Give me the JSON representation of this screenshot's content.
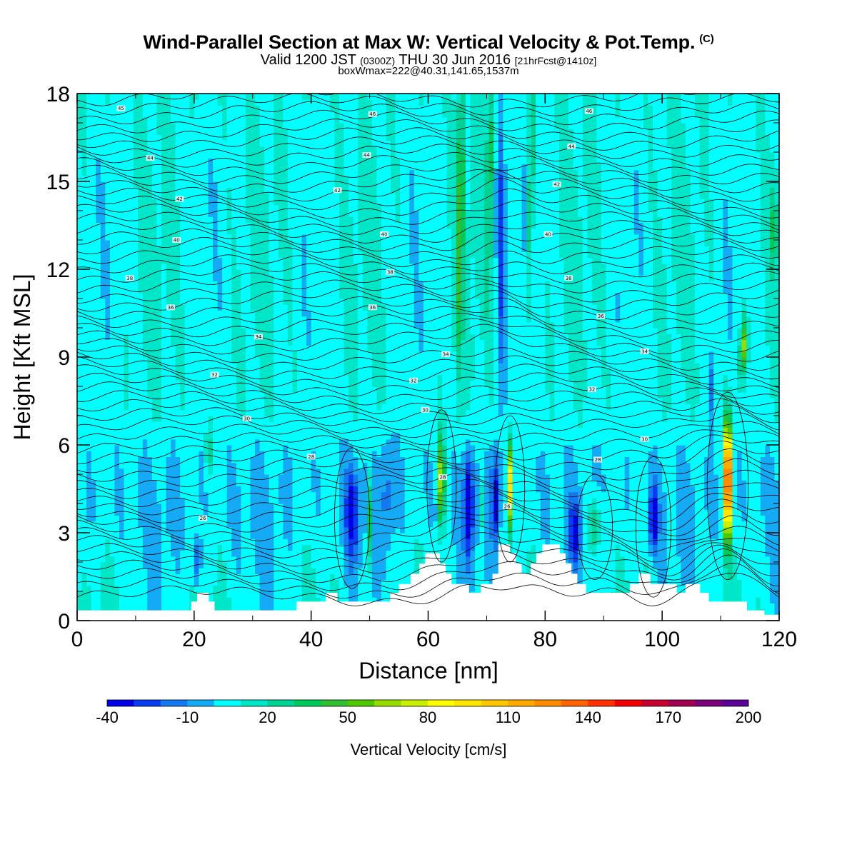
{
  "header": {
    "title": "Wind-Parallel Section at Max W: Vertical Velocity & Pot.Temp.",
    "copyright": "(C)",
    "valid_main": "Valid 1200 JST",
    "valid_utc": "(0300Z)",
    "valid_date": "THU 30 Jun 2016",
    "forecast": "[21hrFcst@1410z]",
    "boxwmax": "boxWmax=222@40.31,141.65,1537m"
  },
  "chart_data": {
    "type": "heatmap",
    "title": "Wind-Parallel Section at Max W: Vertical Velocity & Pot.Temp.",
    "xlabel": "Distance [nm]",
    "ylabel": "Height [Kft MSL]",
    "xlim": [
      0,
      120
    ],
    "ylim": [
      0,
      18
    ],
    "x_ticks": [
      "0",
      "20",
      "40",
      "60",
      "80",
      "100",
      "120"
    ],
    "y_ticks": [
      "0",
      "3",
      "6",
      "9",
      "12",
      "15",
      "18"
    ],
    "colorbar": {
      "title": "Vertical Velocity [cm/s]",
      "tick_labels": [
        "-40",
        "-10",
        "20",
        "50",
        "80",
        "110",
        "140",
        "170",
        "200"
      ],
      "tick_values": [
        -40,
        -10,
        20,
        50,
        80,
        110,
        140,
        170,
        200
      ],
      "levels_min": -40,
      "levels_step": 10,
      "colors": [
        "#0000e6",
        "#0a3cf0",
        "#1478f0",
        "#14aaf5",
        "#00ffff",
        "#00e6c8",
        "#00d296",
        "#00c85a",
        "#32be32",
        "#50c800",
        "#96dc00",
        "#c8f000",
        "#ffff00",
        "#ffe600",
        "#ffc800",
        "#ffaa00",
        "#ff8c00",
        "#ff6400",
        "#ff3200",
        "#f00000",
        "#c80032",
        "#a00050",
        "#780078",
        "#5a0096"
      ]
    },
    "theta_contour_labels": [
      {
        "x": 7.5,
        "y": 17.5,
        "text": "45"
      },
      {
        "x": 12.5,
        "y": 15.8,
        "text": "44"
      },
      {
        "x": 17.5,
        "y": 14.4,
        "text": "42"
      },
      {
        "x": 17.0,
        "y": 13.0,
        "text": "40"
      },
      {
        "x": 9.0,
        "y": 11.7,
        "text": "38"
      },
      {
        "x": 16.0,
        "y": 10.7,
        "text": "36"
      },
      {
        "x": 31.0,
        "y": 9.7,
        "text": "34"
      },
      {
        "x": 23.5,
        "y": 8.4,
        "text": "32"
      },
      {
        "x": 29.0,
        "y": 6.9,
        "text": "30"
      },
      {
        "x": 40.0,
        "y": 5.6,
        "text": "28"
      },
      {
        "x": 21.5,
        "y": 3.5,
        "text": "26"
      },
      {
        "x": 50.5,
        "y": 17.3,
        "text": "46"
      },
      {
        "x": 49.5,
        "y": 15.9,
        "text": "44"
      },
      {
        "x": 44.5,
        "y": 14.7,
        "text": "42"
      },
      {
        "x": 52.5,
        "y": 13.2,
        "text": "40"
      },
      {
        "x": 53.5,
        "y": 11.9,
        "text": "38"
      },
      {
        "x": 50.5,
        "y": 10.7,
        "text": "36"
      },
      {
        "x": 63.0,
        "y": 9.1,
        "text": "34"
      },
      {
        "x": 57.5,
        "y": 8.2,
        "text": "32"
      },
      {
        "x": 59.5,
        "y": 7.2,
        "text": "30"
      },
      {
        "x": 62.5,
        "y": 4.9,
        "text": "28"
      },
      {
        "x": 73.5,
        "y": 3.9,
        "text": "26"
      },
      {
        "x": 87.5,
        "y": 17.4,
        "text": "46"
      },
      {
        "x": 84.5,
        "y": 16.2,
        "text": "44"
      },
      {
        "x": 82.0,
        "y": 14.9,
        "text": "42"
      },
      {
        "x": 80.5,
        "y": 13.2,
        "text": "40"
      },
      {
        "x": 84.0,
        "y": 11.7,
        "text": "38"
      },
      {
        "x": 89.5,
        "y": 10.4,
        "text": "36"
      },
      {
        "x": 97.0,
        "y": 9.2,
        "text": "34"
      },
      {
        "x": 88.0,
        "y": 7.9,
        "text": "32"
      },
      {
        "x": 97.0,
        "y": 6.2,
        "text": "30"
      },
      {
        "x": 89.0,
        "y": 5.5,
        "text": "28"
      }
    ]
  }
}
